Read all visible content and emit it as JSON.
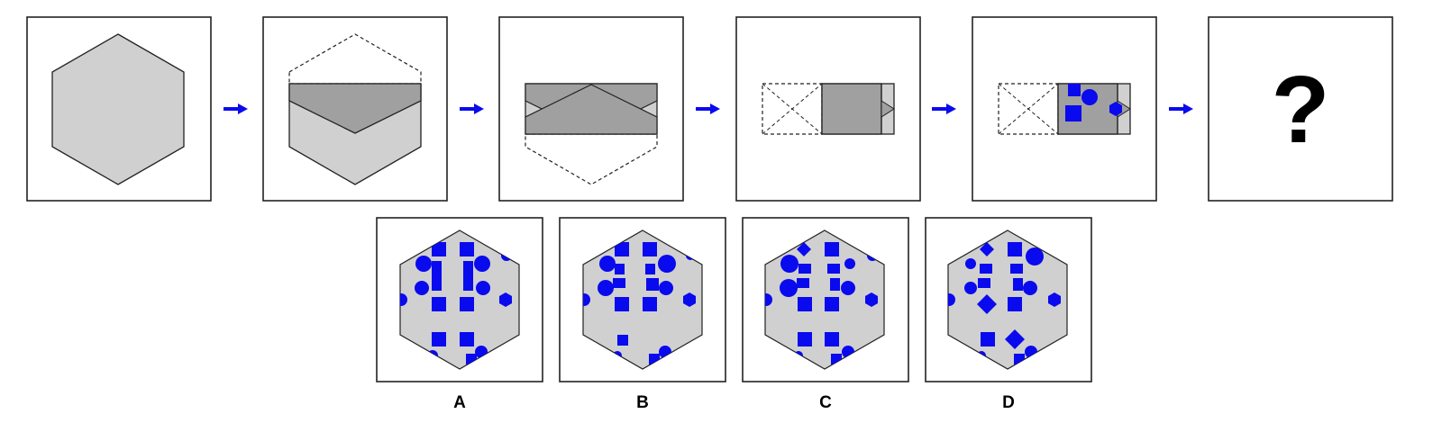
{
  "puzzle": {
    "question_mark": "?",
    "options": [
      {
        "label": "A"
      },
      {
        "label": "B"
      },
      {
        "label": "C"
      },
      {
        "label": "D"
      }
    ]
  },
  "colors": {
    "hex_fill": "#d0d0d0",
    "fold_fill": "#a0a0a0",
    "stroke": "#222222",
    "accent": "#0a0aee",
    "background": "#ffffff"
  },
  "icons": {
    "arrow": "right-arrow-icon",
    "circle": "circle-icon",
    "square": "square-icon",
    "diamond": "diamond-icon",
    "hexagon": "hexagon-icon"
  }
}
